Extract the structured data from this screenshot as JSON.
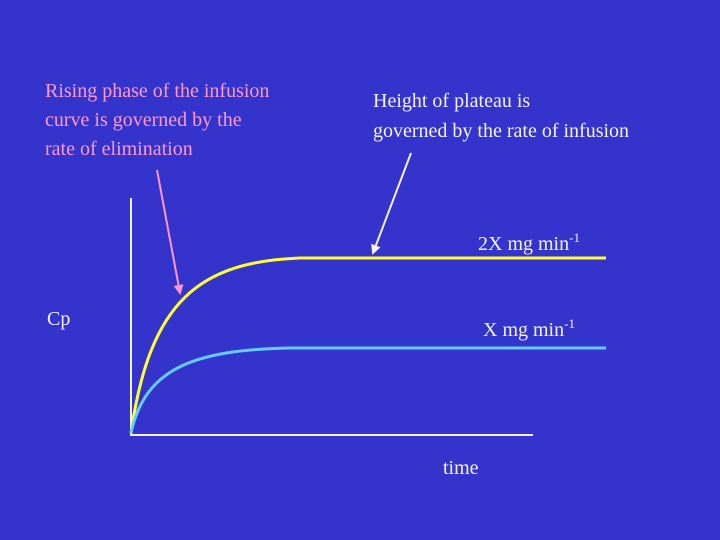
{
  "annotations": {
    "rising_phase": {
      "lines": [
        "Rising phase of the infusion",
        "curve is governed by the",
        "rate of elimination"
      ]
    },
    "plateau_height": {
      "lines": [
        "Height of plateau is",
        "governed by the rate of infusion"
      ]
    }
  },
  "curve_labels": [
    {
      "text": "2X mg min",
      "superscript": "-1"
    },
    {
      "text": "X mg min",
      "superscript": "-1"
    }
  ],
  "axes": {
    "y_label": "Cp",
    "x_label": "time"
  }
}
